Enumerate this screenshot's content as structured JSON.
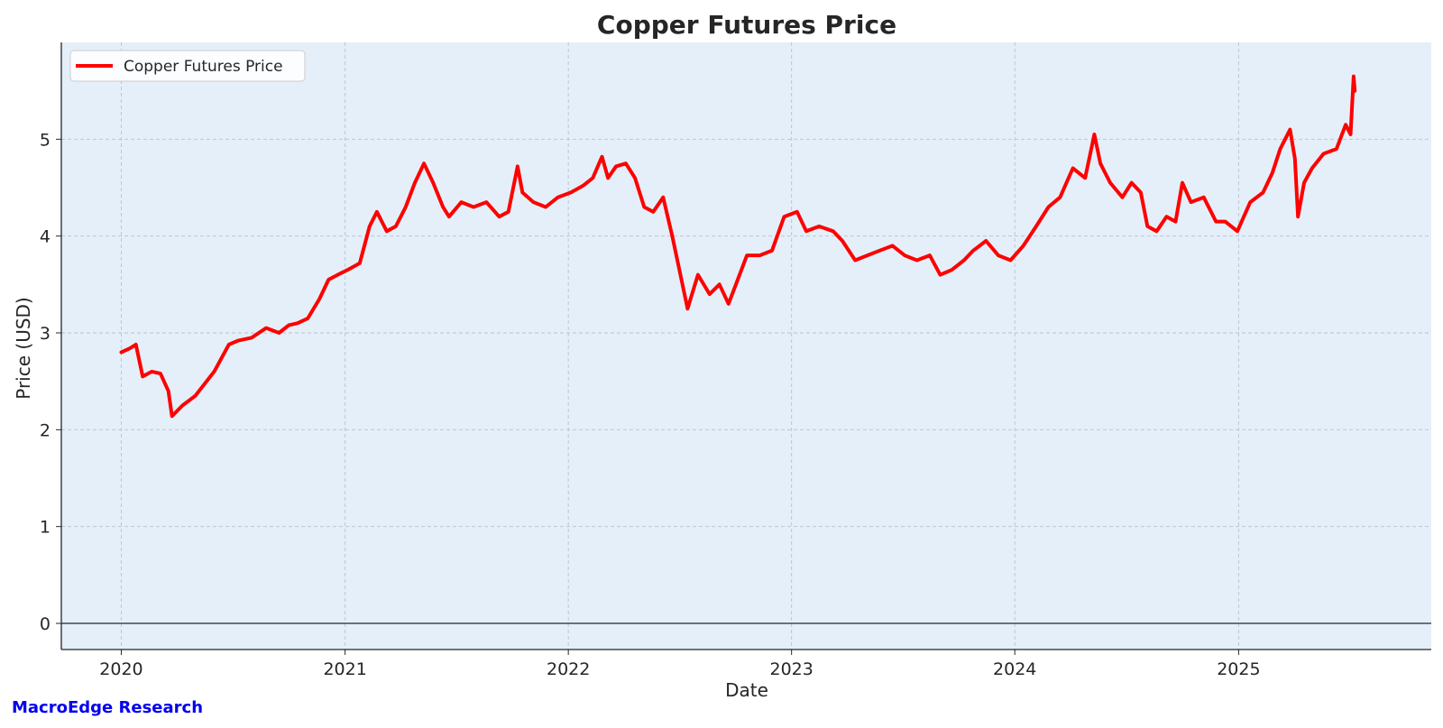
{
  "chart_data": {
    "type": "line",
    "title": "Copper Futures Price",
    "xlabel": "Date",
    "ylabel": "Price (USD)",
    "xlim": [
      "2019-09-25",
      "2025-11-12"
    ],
    "ylim": [
      -0.27,
      6.0
    ],
    "x_ticks": [
      "2020",
      "2021",
      "2022",
      "2023",
      "2024",
      "2025"
    ],
    "y_ticks": [
      "0",
      "1",
      "2",
      "3",
      "4",
      "5"
    ],
    "grid": true,
    "legend_position": "top-left",
    "colors": {
      "series": "#ff0000",
      "plot_background": "#e5effa",
      "watermark": "#0000ee"
    },
    "series": [
      {
        "name": "Copper Futures Price",
        "x": [
          "2020-01-01",
          "2020-01-15",
          "2020-01-25",
          "2020-02-05",
          "2020-02-20",
          "2020-03-05",
          "2020-03-18",
          "2020-03-24",
          "2020-04-10",
          "2020-05-01",
          "2020-06-01",
          "2020-06-25",
          "2020-07-10",
          "2020-08-01",
          "2020-08-25",
          "2020-09-15",
          "2020-10-01",
          "2020-10-15",
          "2020-11-01",
          "2020-11-20",
          "2020-12-05",
          "2020-12-20",
          "2021-01-05",
          "2021-01-25",
          "2021-02-10",
          "2021-02-22",
          "2021-03-10",
          "2021-03-25",
          "2021-04-10",
          "2021-04-25",
          "2021-05-10",
          "2021-05-25",
          "2021-06-10",
          "2021-06-20",
          "2021-07-10",
          "2021-07-30",
          "2021-08-20",
          "2021-09-10",
          "2021-09-25",
          "2021-10-10",
          "2021-10-18",
          "2021-11-05",
          "2021-11-25",
          "2021-12-15",
          "2022-01-05",
          "2022-01-25",
          "2022-02-10",
          "2022-02-25",
          "2022-03-07",
          "2022-03-20",
          "2022-04-05",
          "2022-04-20",
          "2022-05-05",
          "2022-05-20",
          "2022-06-05",
          "2022-06-20",
          "2022-07-05",
          "2022-07-15",
          "2022-08-01",
          "2022-08-20",
          "2022-09-05",
          "2022-09-20",
          "2022-10-05",
          "2022-10-20",
          "2022-11-10",
          "2022-11-30",
          "2022-12-20",
          "2023-01-10",
          "2023-01-25",
          "2023-02-15",
          "2023-03-10",
          "2023-03-25",
          "2023-04-15",
          "2023-05-05",
          "2023-05-25",
          "2023-06-15",
          "2023-07-05",
          "2023-07-25",
          "2023-08-15",
          "2023-09-01",
          "2023-09-20",
          "2023-10-10",
          "2023-10-25",
          "2023-11-15",
          "2023-12-05",
          "2023-12-25",
          "2024-01-15",
          "2024-02-05",
          "2024-02-25",
          "2024-03-15",
          "2024-04-05",
          "2024-04-25",
          "2024-05-10",
          "2024-05-20",
          "2024-06-05",
          "2024-06-25",
          "2024-07-10",
          "2024-07-25",
          "2024-08-05",
          "2024-08-20",
          "2024-09-05",
          "2024-09-20",
          "2024-10-01",
          "2024-10-15",
          "2024-11-05",
          "2024-11-25",
          "2024-12-10",
          "2024-12-30",
          "2025-01-20",
          "2025-02-10",
          "2025-02-25",
          "2025-03-10",
          "2025-03-26",
          "2025-04-03",
          "2025-04-08",
          "2025-04-18",
          "2025-05-01",
          "2025-05-20",
          "2025-06-10",
          "2025-06-25",
          "2025-07-03",
          "2025-07-08",
          "2025-07-10"
        ],
        "values": [
          2.8,
          2.84,
          2.88,
          2.55,
          2.6,
          2.58,
          2.4,
          2.14,
          2.25,
          2.35,
          2.6,
          2.88,
          2.92,
          2.95,
          3.05,
          3.0,
          3.08,
          3.1,
          3.15,
          3.35,
          3.55,
          3.6,
          3.65,
          3.72,
          4.1,
          4.25,
          4.05,
          4.1,
          4.3,
          4.55,
          4.75,
          4.55,
          4.3,
          4.2,
          4.35,
          4.3,
          4.35,
          4.2,
          4.25,
          4.72,
          4.45,
          4.35,
          4.3,
          4.4,
          4.45,
          4.52,
          4.6,
          4.82,
          4.6,
          4.72,
          4.75,
          4.6,
          4.3,
          4.25,
          4.4,
          4.0,
          3.55,
          3.25,
          3.6,
          3.4,
          3.5,
          3.3,
          3.55,
          3.8,
          3.8,
          3.85,
          4.2,
          4.25,
          4.05,
          4.1,
          4.05,
          3.95,
          3.75,
          3.8,
          3.85,
          3.9,
          3.8,
          3.75,
          3.8,
          3.6,
          3.65,
          3.75,
          3.85,
          3.95,
          3.8,
          3.75,
          3.9,
          4.1,
          4.3,
          4.4,
          4.7,
          4.6,
          5.05,
          4.75,
          4.55,
          4.4,
          4.55,
          4.45,
          4.1,
          4.05,
          4.2,
          4.15,
          4.55,
          4.35,
          4.4,
          4.15,
          4.15,
          4.05,
          4.35,
          4.45,
          4.65,
          4.9,
          5.1,
          4.8,
          4.2,
          4.55,
          4.7,
          4.85,
          4.9,
          5.15,
          5.05,
          5.65,
          5.5
        ]
      }
    ],
    "watermark": "MacroEdge Research"
  }
}
